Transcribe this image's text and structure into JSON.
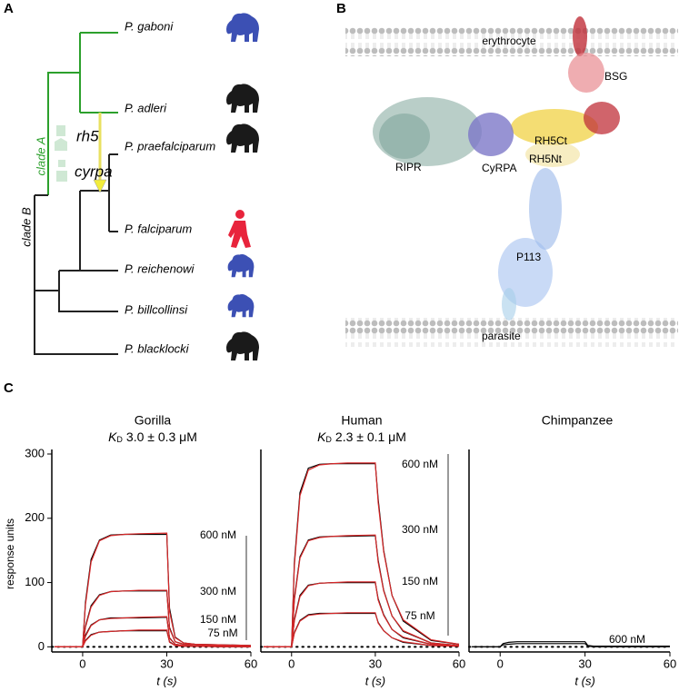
{
  "panels": {
    "a": "A",
    "b": "B",
    "c": "C"
  },
  "tree": {
    "taxa": [
      "P. gaboni",
      "P. adleri",
      "P. praefalciparum",
      "P. falciparum",
      "P. reichenowi",
      "P. billcollinsi",
      "P. blacklocki"
    ],
    "clades": [
      "clade A",
      "clade B"
    ],
    "genes": [
      "rh5",
      "cyrpa"
    ]
  },
  "structure": {
    "labels": [
      "erythrocyte",
      "BSG",
      "RIPR",
      "CyRPA",
      "RH5Ct",
      "RH5Nt",
      "P113",
      "parasite"
    ]
  },
  "chart_data": [
    {
      "type": "line",
      "title": "Gorilla",
      "subtitle": {
        "symbol": "K",
        "subscript": "D",
        "text": "3.0 ± 0.3 μM"
      },
      "xlabel": "t (s)",
      "ylabel": "response units",
      "x": [
        -10,
        0,
        1,
        3,
        6,
        10,
        15,
        20,
        30,
        31,
        33,
        36,
        40,
        50,
        60
      ],
      "xlim": [
        -11,
        60
      ],
      "xticks": [
        0,
        30,
        60
      ],
      "ylim": [
        -8,
        300
      ],
      "yticks": [
        0,
        100,
        200,
        300
      ],
      "series": [
        {
          "color": "#000000",
          "values": [
            0,
            0,
            69,
            136,
            166,
            174,
            175,
            175,
            175,
            60,
            15,
            6,
            4,
            3,
            2
          ]
        },
        {
          "color": "#000000",
          "values": [
            0,
            0,
            32,
            64,
            81,
            86,
            87,
            87,
            87,
            30,
            8,
            4,
            3,
            2,
            1
          ]
        },
        {
          "color": "#000000",
          "values": [
            0,
            0,
            18,
            34,
            42,
            45,
            45,
            45,
            46,
            14,
            4,
            2,
            1,
            1,
            0
          ]
        },
        {
          "color": "#000000",
          "values": [
            0,
            0,
            10,
            19,
            23,
            24,
            25,
            25,
            25,
            8,
            2,
            1,
            1,
            0,
            0
          ]
        },
        {
          "color": "#d62728",
          "values": [
            0,
            0,
            65,
            132,
            165,
            173,
            175,
            176,
            177,
            55,
            14,
            6,
            4,
            3,
            2
          ]
        },
        {
          "color": "#d62728",
          "values": [
            0,
            0,
            30,
            62,
            80,
            86,
            87,
            88,
            88,
            28,
            8,
            4,
            3,
            2,
            1
          ]
        },
        {
          "color": "#d62728",
          "values": [
            0,
            0,
            16,
            33,
            42,
            44,
            45,
            46,
            47,
            13,
            4,
            2,
            1,
            1,
            0
          ]
        },
        {
          "color": "#d62728",
          "values": [
            0,
            0,
            9,
            18,
            23,
            24,
            25,
            26,
            26,
            7,
            2,
            1,
            1,
            0,
            0
          ]
        }
      ],
      "annotations": [
        "600 nM",
        "300 nM",
        "150 nM",
        "75 nM"
      ]
    },
    {
      "type": "line",
      "title": "Human",
      "subtitle": {
        "symbol": "K",
        "subscript": "D",
        "text": "2.3 ± 0.1 μM"
      },
      "xlabel": "t (s)",
      "x": [
        -10,
        0,
        1,
        3,
        6,
        10,
        15,
        20,
        30,
        31,
        33,
        36,
        40,
        50,
        60
      ],
      "xlim": [
        -11,
        60
      ],
      "xticks": [
        0,
        30,
        60
      ],
      "ylim": [
        -8,
        300
      ],
      "series": [
        {
          "color": "#000000",
          "values": [
            0,
            0,
            130,
            240,
            278,
            284,
            285,
            285,
            285,
            230,
            150,
            80,
            40,
            10,
            4
          ]
        },
        {
          "color": "#000000",
          "values": [
            0,
            0,
            75,
            140,
            166,
            171,
            172,
            172,
            173,
            135,
            88,
            48,
            24,
            6,
            2
          ]
        },
        {
          "color": "#000000",
          "values": [
            0,
            0,
            42,
            80,
            96,
            99,
            100,
            100,
            100,
            75,
            50,
            27,
            14,
            4,
            1
          ]
        },
        {
          "color": "#000000",
          "values": [
            0,
            0,
            22,
            41,
            50,
            52,
            52,
            52,
            52,
            38,
            25,
            14,
            7,
            2,
            1
          ]
        },
        {
          "color": "#d62728",
          "values": [
            0,
            0,
            125,
            235,
            275,
            283,
            285,
            286,
            286,
            225,
            148,
            80,
            42,
            11,
            4
          ]
        },
        {
          "color": "#d62728",
          "values": [
            0,
            0,
            72,
            138,
            165,
            170,
            172,
            173,
            174,
            132,
            87,
            48,
            25,
            6,
            2
          ]
        },
        {
          "color": "#d62728",
          "values": [
            0,
            0,
            40,
            78,
            95,
            99,
            100,
            101,
            101,
            73,
            49,
            27,
            15,
            4,
            1
          ]
        },
        {
          "color": "#d62728",
          "values": [
            0,
            0,
            21,
            40,
            49,
            51,
            52,
            53,
            53,
            37,
            25,
            14,
            8,
            2,
            1
          ]
        }
      ],
      "annotations": [
        "600 nM",
        "300 nM",
        "150 nM",
        "75 nM"
      ]
    },
    {
      "type": "line",
      "title": "Chimpanzee",
      "xlabel": "t (s)",
      "x": [
        -10,
        0,
        1,
        3,
        6,
        10,
        15,
        20,
        30,
        31,
        33,
        36,
        40,
        50,
        60
      ],
      "xlim": [
        -11,
        60
      ],
      "xticks": [
        0,
        30,
        60
      ],
      "ylim": [
        -8,
        300
      ],
      "series": [
        {
          "color": "#000000",
          "values": [
            0,
            0,
            5,
            7,
            8,
            8,
            8,
            8,
            8,
            2,
            1,
            1,
            1,
            1,
            1
          ]
        },
        {
          "color": "#000000",
          "values": [
            0,
            0,
            3,
            4,
            5,
            5,
            5,
            5,
            5,
            1,
            0,
            0,
            0,
            0,
            0
          ]
        }
      ],
      "annotations": [
        "600 nM"
      ]
    }
  ]
}
